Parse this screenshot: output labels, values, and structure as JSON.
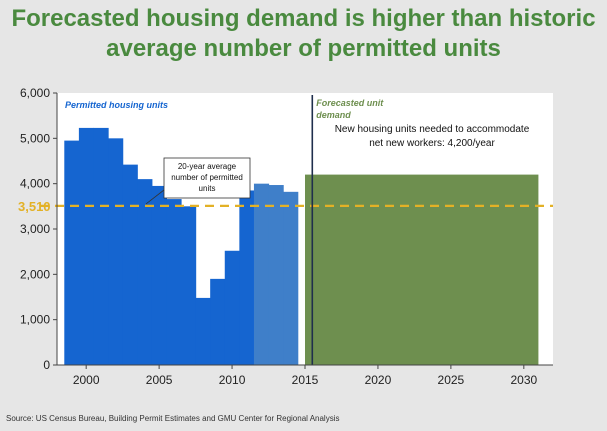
{
  "header": {
    "title_line1": "Forecasted housing demand is higher than historic",
    "title_line2": "average number of permitted units"
  },
  "source": "Source: US Census Bureau, Building Permit Estimates and GMU Center for Regional Analysis",
  "colors": {
    "historic": "#1565d0",
    "transition": "#3f7fc9",
    "forecast": "#6e8f4f",
    "average_line": "#e3b126",
    "divider": "#1f2f4d",
    "title": "#4a8a3f"
  },
  "chart_data": {
    "type": "bar",
    "ylim": [
      0,
      6000
    ],
    "xlim": [
      1998,
      2032
    ],
    "yticks": [
      0,
      1000,
      2000,
      3000,
      4000,
      5000,
      6000
    ],
    "ytick_labels": [
      "0",
      "1,000",
      "2,000",
      "3,000",
      "4,000",
      "5,000",
      "6,000"
    ],
    "xticks": [
      2000,
      2005,
      2010,
      2015,
      2020,
      2025,
      2030
    ],
    "grid": false,
    "series": [
      {
        "name": "Permitted housing units",
        "x": [
          1999,
          2000,
          2001,
          2002,
          2003,
          2004,
          2005,
          2006,
          2007,
          2008,
          2009,
          2010,
          2011,
          2012,
          2013,
          2014
        ],
        "values": [
          4950,
          5230,
          5230,
          5000,
          4420,
          4100,
          3950,
          3660,
          3500,
          1480,
          1900,
          2520,
          3850,
          4000,
          3970,
          3820
        ]
      },
      {
        "name": "Forecasted unit demand",
        "x_start": 2015,
        "x_end": 2031,
        "value": 4200
      }
    ],
    "average_line": {
      "value": 3510,
      "label": "3,510",
      "annotation": "20-year average number of permitted units"
    },
    "forecast_divider_year": 2015.5,
    "annotations": {
      "permitted_label": "Permitted housing units",
      "forecast_label": "Forecasted unit demand",
      "callout": "New housing units needed to accommodate net new workers: 4,200/year"
    }
  }
}
